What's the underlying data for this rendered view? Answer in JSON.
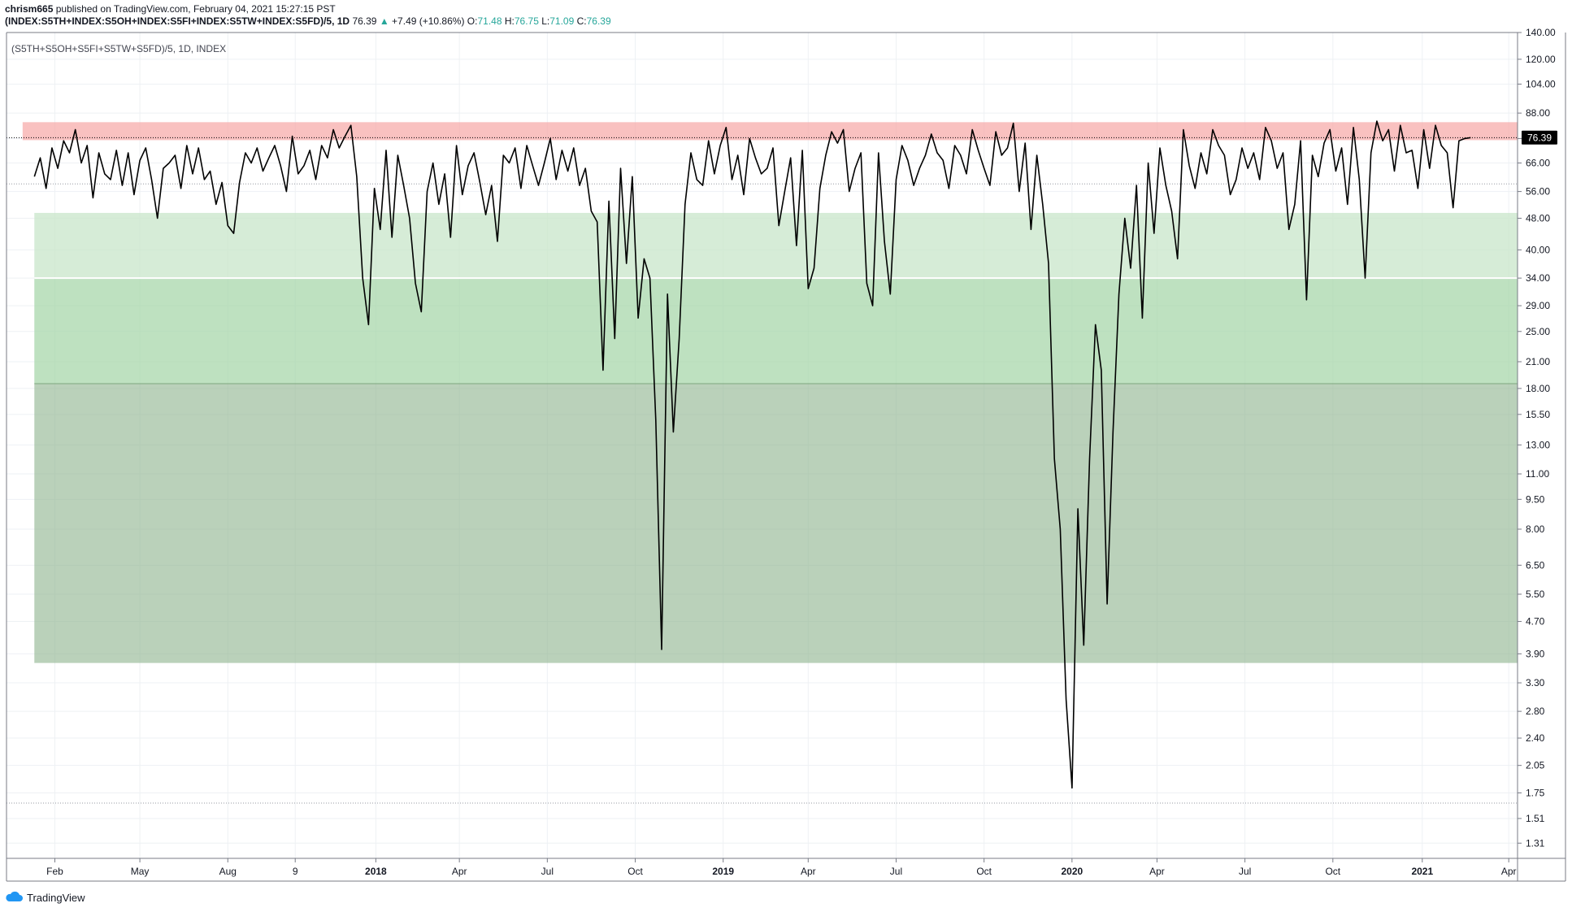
{
  "header": {
    "author": "chrism665",
    "published_text": "published on TradingView.com, February 04, 2021 15:27:15 PST",
    "symbol_line": "(INDEX:S5TH+INDEX:S5OH+INDEX:S5FI+INDEX:S5TW+INDEX:S5FD)/5, 1D",
    "last": "76.39",
    "change": "+7.49 (+10.86%)",
    "o_label": "O:",
    "o_value": "71.48",
    "h_label": "H:",
    "h_value": "76.75",
    "l_label": "L:",
    "l_value": "71.09",
    "c_label": "C:",
    "c_value": "76.39"
  },
  "legend_label": "(S5TH+S5OH+S5FI+S5TW+S5FD)/5, 1D, INDEX",
  "price_badge": "76.39",
  "footer": {
    "brand": "TradingView"
  },
  "colors": {
    "line": "#000000",
    "red_zone": "#f7a9a8",
    "green_light": "#c8e6c9",
    "green_mid": "#a5d6a7",
    "green_dark": "#8fb58f",
    "badge_bg": "#000000",
    "grid": "#eef1f4"
  },
  "chart_data": {
    "type": "line",
    "scale": "log",
    "title": "(S5TH+S5OH+S5FI+S5TW+S5FD)/5, 1D, INDEX",
    "ylim": [
      1.2,
      140
    ],
    "y_ticks": [
      "140.00",
      "120.00",
      "104.00",
      "88.00",
      "76.00",
      "66.00",
      "56.00",
      "48.00",
      "40.00",
      "34.00",
      "29.00",
      "25.00",
      "21.00",
      "18.00",
      "15.50",
      "13.00",
      "11.00",
      "9.50",
      "8.00",
      "6.50",
      "5.50",
      "4.70",
      "3.90",
      "3.30",
      "2.80",
      "2.40",
      "2.05",
      "1.75",
      "1.51",
      "1.31"
    ],
    "x_ticks": [
      {
        "label": "Feb",
        "t": 0.7,
        "bold": false
      },
      {
        "label": "May",
        "t": 3.6,
        "bold": false
      },
      {
        "label": "Aug",
        "t": 6.6,
        "bold": false
      },
      {
        "label": "9",
        "t": 8.9,
        "bold": false
      },
      {
        "label": "2018",
        "t": 11.65,
        "bold": true
      },
      {
        "label": "Apr",
        "t": 14.5,
        "bold": false
      },
      {
        "label": "Jul",
        "t": 17.5,
        "bold": false
      },
      {
        "label": "Oct",
        "t": 20.5,
        "bold": false
      },
      {
        "label": "2019",
        "t": 23.5,
        "bold": true
      },
      {
        "label": "Apr",
        "t": 26.4,
        "bold": false
      },
      {
        "label": "Jul",
        "t": 29.4,
        "bold": false
      },
      {
        "label": "Oct",
        "t": 32.4,
        "bold": false
      },
      {
        "label": "2020",
        "t": 35.4,
        "bold": true
      },
      {
        "label": "Apr",
        "t": 38.3,
        "bold": false
      },
      {
        "label": "Jul",
        "t": 41.3,
        "bold": false
      },
      {
        "label": "Oct",
        "t": 44.3,
        "bold": false
      },
      {
        "label": "2021",
        "t": 47.35,
        "bold": true
      },
      {
        "label": "Apr",
        "t": 50.3,
        "bold": false
      }
    ],
    "zones": [
      {
        "name": "red",
        "y_low": 75.3,
        "y_high": 83.5,
        "t_start": -0.4
      },
      {
        "name": "green_light",
        "y_low": 34,
        "y_high": 49.5,
        "t_start": 0.0
      },
      {
        "name": "green_mid",
        "y_low": 18.5,
        "y_high": 34,
        "t_start": 0.0
      },
      {
        "name": "green_dark",
        "y_low": 3.7,
        "y_high": 18.5,
        "t_start": 0.0
      }
    ],
    "ref_lines": [
      {
        "y": 58.5
      },
      {
        "y": 1.65
      }
    ],
    "current_line": {
      "y": 76.39
    },
    "series": [
      {
        "x": [
          0.0,
          0.2,
          0.4,
          0.6,
          0.8,
          1.0,
          1.2,
          1.4,
          1.6,
          1.8,
          2.0,
          2.2,
          2.4,
          2.6,
          2.8,
          3.0,
          3.2,
          3.4,
          3.6,
          3.8,
          4.0,
          4.2,
          4.4,
          4.6,
          4.8,
          5.0,
          5.2,
          5.4,
          5.6,
          5.8,
          6.0,
          6.2,
          6.4,
          6.6,
          6.8,
          7.0,
          7.2,
          7.4,
          7.6,
          7.8,
          8.0,
          8.2,
          8.4,
          8.6,
          8.8,
          9.0,
          9.2,
          9.4,
          9.6,
          9.8,
          10.0,
          10.2,
          10.4,
          10.6,
          10.8,
          11.0,
          11.2,
          11.4,
          11.6,
          11.8,
          12.0,
          12.2,
          12.4,
          12.6,
          12.8,
          13.0,
          13.2,
          13.4,
          13.6,
          13.8,
          14.0,
          14.2,
          14.4,
          14.6,
          14.8,
          15.0,
          15.2,
          15.4,
          15.6,
          15.8,
          16.0,
          16.2,
          16.4,
          16.6,
          16.8,
          17.0,
          17.2,
          17.4,
          17.6,
          17.8,
          18.0,
          18.2,
          18.4,
          18.6,
          18.8,
          19.0,
          19.2,
          19.4,
          19.6,
          19.8,
          20.0,
          20.2,
          20.4,
          20.6,
          20.8,
          21.0,
          21.2,
          21.4,
          21.6,
          21.8,
          22.0,
          22.2,
          22.4,
          22.6,
          22.8,
          23.0,
          23.2,
          23.4,
          23.6,
          23.8,
          24.0,
          24.2,
          24.4,
          24.6,
          24.8,
          25.0,
          25.2,
          25.4,
          25.6,
          25.8,
          26.0,
          26.2,
          26.4,
          26.6,
          26.8,
          27.0,
          27.2,
          27.4,
          27.6,
          27.8,
          28.0,
          28.2,
          28.4,
          28.6,
          28.8,
          29.0,
          29.2,
          29.4,
          29.6,
          29.8,
          30.0,
          30.2,
          30.4,
          30.6,
          30.8,
          31.0,
          31.2,
          31.4,
          31.6,
          31.8,
          32.0,
          32.2,
          32.4,
          32.6,
          32.8,
          33.0,
          33.2,
          33.4,
          33.6,
          33.8,
          34.0,
          34.2,
          34.4,
          34.6,
          34.8,
          35.0,
          35.2,
          35.4,
          35.6,
          35.8,
          36.0,
          36.2,
          36.4,
          36.6,
          36.8,
          37.0,
          37.2,
          37.4,
          37.6,
          37.8,
          38.0,
          38.2,
          38.4,
          38.6,
          38.8,
          39.0,
          39.2,
          39.4,
          39.6,
          39.8,
          40.0,
          40.2,
          40.4,
          40.6,
          40.8,
          41.0,
          41.2,
          41.4,
          41.6,
          41.8,
          42.0,
          42.2,
          42.4,
          42.6,
          42.8,
          43.0,
          43.2,
          43.4,
          43.6,
          43.8,
          44.0,
          44.2,
          44.4,
          44.6,
          44.8,
          45.0,
          45.2,
          45.4,
          45.6,
          45.8,
          46.0,
          46.2,
          46.4,
          46.6,
          46.8,
          47.0,
          47.2,
          47.4,
          47.6,
          47.8,
          48.0,
          48.2,
          48.4,
          48.6,
          48.8,
          49.0
        ],
        "y": [
          61,
          68,
          57,
          72,
          64,
          75,
          70,
          80,
          66,
          73,
          54,
          70,
          62,
          60,
          71,
          58,
          70,
          55,
          67,
          72,
          60,
          48,
          64,
          66,
          69,
          57,
          73,
          62,
          72,
          60,
          63,
          52,
          59,
          46,
          44,
          59,
          70,
          66,
          72,
          63,
          68,
          73,
          65,
          56,
          77,
          62,
          65,
          71,
          60,
          73,
          68,
          80,
          72,
          77,
          82,
          61,
          34,
          26,
          57,
          45,
          71,
          43,
          69,
          58,
          48,
          33,
          28,
          56,
          66,
          52,
          62,
          43,
          73,
          55,
          65,
          70,
          59,
          49,
          58,
          42,
          69,
          66,
          72,
          57,
          73,
          65,
          58,
          66,
          76,
          60,
          71,
          63,
          72,
          58,
          64,
          50,
          47,
          20,
          53,
          24,
          64,
          37,
          61,
          27,
          38,
          34,
          15,
          4.0,
          31,
          14,
          24,
          52,
          70,
          60,
          58,
          75,
          62,
          73,
          81,
          60,
          69,
          55,
          76,
          68,
          62,
          64,
          72,
          46,
          56,
          68,
          41,
          71,
          32,
          36,
          57,
          69,
          79,
          74,
          80,
          56,
          64,
          70,
          33,
          29,
          70,
          42,
          31,
          60,
          73,
          67,
          58,
          64,
          69,
          78,
          70,
          67,
          57,
          73,
          69,
          62,
          80,
          71,
          64,
          58,
          79,
          69,
          72,
          83,
          56,
          74,
          45,
          69,
          52,
          37,
          12,
          8.0,
          3.0,
          1.8,
          9.0,
          4.1,
          12,
          26,
          20,
          5.2,
          14,
          31,
          48,
          36,
          58,
          27,
          66,
          44,
          72,
          58,
          50,
          38,
          80,
          65,
          57,
          70,
          62,
          80,
          73,
          69,
          55,
          60,
          72,
          64,
          70,
          60,
          81,
          75,
          64,
          70,
          45,
          52,
          75,
          30,
          69,
          61,
          74,
          80,
          63,
          72,
          52,
          81,
          60,
          34,
          70,
          84,
          75,
          80,
          63,
          82,
          70,
          71,
          57,
          80,
          64,
          82,
          73,
          70,
          51,
          75,
          76,
          76.39
        ]
      }
    ]
  }
}
